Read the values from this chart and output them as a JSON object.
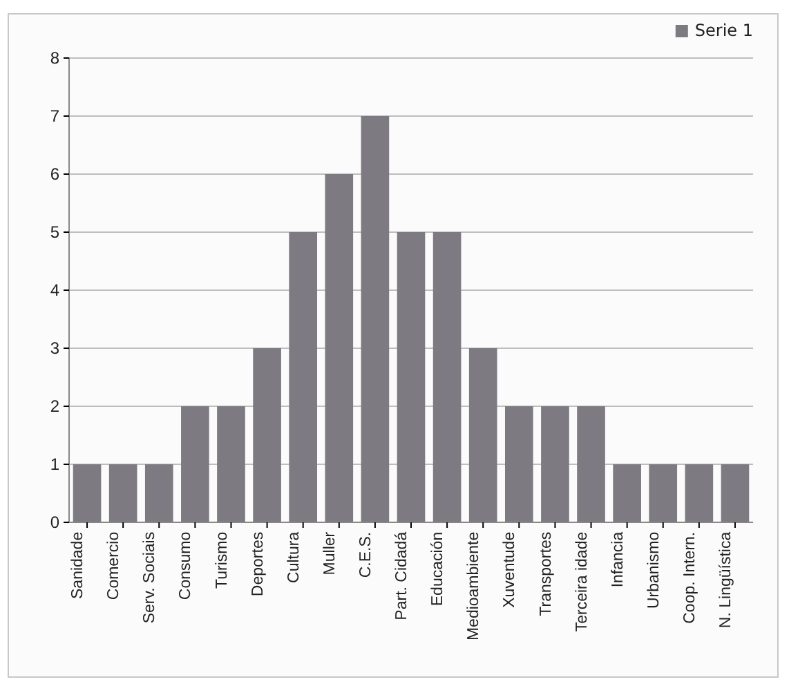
{
  "chart_data": {
    "type": "bar",
    "categories": [
      "Sanidade",
      "Comercio",
      "Serv. Sociais",
      "Consumo",
      "Turismo",
      "Deportes",
      "Cultura",
      "Muller",
      "C.E.S.",
      "Part. Cidadá",
      "Educación",
      "Medioambiente",
      "Xuventude",
      "Transportes",
      "Terceira idade",
      "Infancia",
      "Urbanismo",
      "Coop. Intern.",
      "N. Lingüística"
    ],
    "series": [
      {
        "name": "Serie 1",
        "color": "#7d7a82",
        "values": [
          1,
          1,
          1,
          2,
          2,
          3,
          5,
          6,
          7,
          5,
          5,
          3,
          2,
          2,
          2,
          1,
          1,
          1,
          1
        ]
      }
    ],
    "ylim": [
      0,
      8
    ],
    "yticks": [
      0,
      1,
      2,
      3,
      4,
      5,
      6,
      7,
      8
    ],
    "grid": "y",
    "legend": "top right"
  }
}
